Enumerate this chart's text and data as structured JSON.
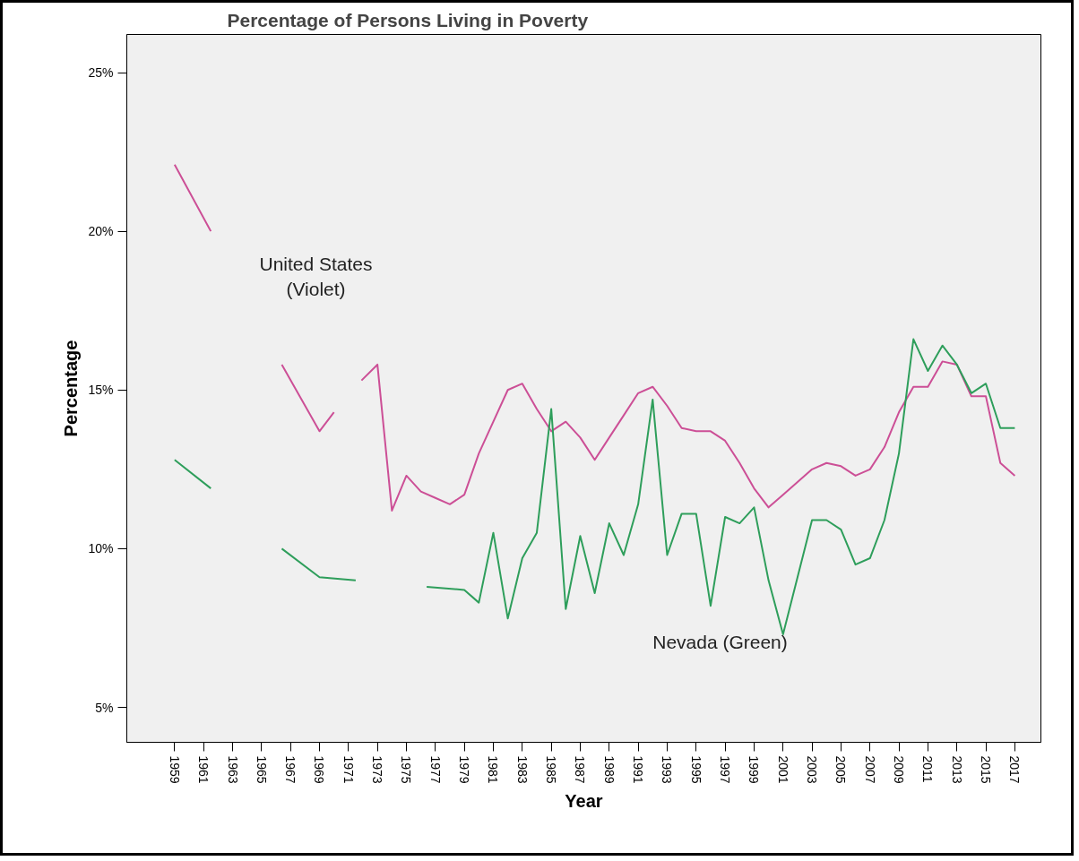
{
  "chart_data": {
    "type": "line",
    "title": "Percentage of Persons Living in Poverty",
    "xlabel": "Year",
    "ylabel": "Percentage",
    "xlim": [
      1955.7,
      2018.8
    ],
    "xticks": [
      1959,
      1961,
      1963,
      1965,
      1967,
      1969,
      1971,
      1973,
      1975,
      1977,
      1979,
      1981,
      1983,
      1985,
      1987,
      1989,
      1991,
      1993,
      1995,
      1997,
      1999,
      2001,
      2003,
      2005,
      2007,
      2009,
      2011,
      2013,
      2015,
      2017
    ],
    "ylim": [
      3.9,
      26.2
    ],
    "yticks": [
      {
        "value": 5,
        "label": "5%"
      },
      {
        "value": 10,
        "label": "10%"
      },
      {
        "value": 15,
        "label": "15%"
      },
      {
        "value": 20,
        "label": "20%"
      },
      {
        "value": 25,
        "label": "25%"
      }
    ],
    "grid": false,
    "line_style": "solid",
    "series": [
      {
        "color": "#cc4f96",
        "x": [
          1959,
          1961.5,
          1964,
          1966.4,
          1969,
          1970,
          1971,
          1971.9,
          1973,
          1974,
          1975,
          1976,
          1977,
          1978,
          1979,
          1980,
          1981,
          1982,
          1983,
          1984,
          1985,
          1986,
          1987,
          1988,
          1989,
          1990,
          1991,
          1992,
          1993,
          1994,
          1995,
          1996,
          1997,
          1998,
          1999,
          2000,
          2001,
          2002,
          2003,
          2004,
          2005,
          2006,
          2007,
          2008,
          2009,
          2010,
          2011,
          2012,
          2013,
          2014,
          2015,
          2016,
          2017
        ],
        "values": [
          22.1,
          20.0,
          null,
          15.8,
          13.7,
          14.3,
          null,
          15.3,
          15.8,
          11.2,
          12.3,
          11.8,
          11.6,
          11.4,
          11.7,
          13.0,
          14.0,
          15.0,
          15.2,
          14.4,
          13.7,
          14.0,
          13.5,
          12.8,
          13.5,
          14.2,
          14.9,
          15.1,
          14.5,
          13.8,
          13.7,
          13.7,
          13.4,
          12.7,
          11.9,
          11.3,
          11.7,
          12.1,
          12.5,
          12.7,
          12.6,
          12.3,
          12.5,
          13.2,
          14.3,
          15.1,
          15.1,
          15.9,
          15.8,
          14.8,
          14.8,
          12.7,
          12.3
        ]
      },
      {
        "color": "#2e9e5b",
        "x": [
          1959,
          1961.5,
          1964,
          1966.4,
          1969,
          1971.5,
          1974,
          1976.4,
          1979,
          1980,
          1981,
          1982,
          1983,
          1984,
          1985,
          1986,
          1987,
          1988,
          1989,
          1990,
          1991,
          1992,
          1993,
          1994,
          1995,
          1996,
          1997,
          1998,
          1999,
          2000,
          2001,
          2002,
          2003,
          2004,
          2005,
          2006,
          2007,
          2008,
          2009,
          2010,
          2011,
          2012,
          2013,
          2014,
          2015,
          2016,
          2017
        ],
        "values": [
          12.8,
          11.9,
          null,
          10.0,
          9.1,
          9.0,
          null,
          8.8,
          8.7,
          8.3,
          10.5,
          7.8,
          9.7,
          10.5,
          14.4,
          8.1,
          10.4,
          8.6,
          10.8,
          9.8,
          11.4,
          14.7,
          9.8,
          11.1,
          11.1,
          8.2,
          11.0,
          10.8,
          11.3,
          9.0,
          7.3,
          9.1,
          10.9,
          10.9,
          10.6,
          9.5,
          9.7,
          10.9,
          13.0,
          16.6,
          15.6,
          16.4,
          15.8,
          14.9,
          15.2,
          13.8,
          13.8
        ]
      }
    ],
    "annotations": [
      "United States\n(Violet)",
      "Nevada (Green)"
    ]
  }
}
